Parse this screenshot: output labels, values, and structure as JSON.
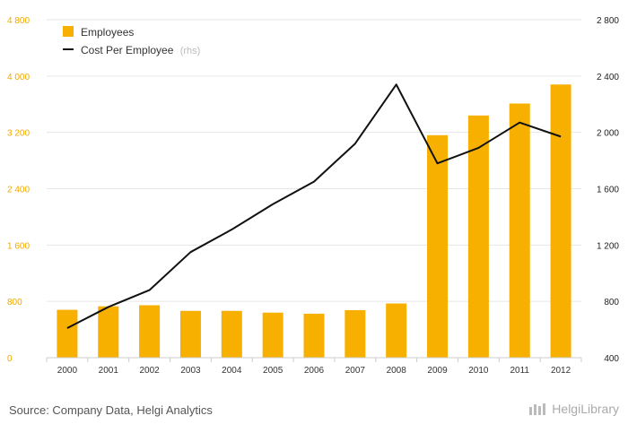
{
  "chart_data": {
    "type": "bar",
    "categories": [
      "2000",
      "2001",
      "2002",
      "2003",
      "2004",
      "2005",
      "2006",
      "2007",
      "2008",
      "2009",
      "2010",
      "2011",
      "2012"
    ],
    "series": [
      {
        "name": "Employees",
        "type": "bar",
        "axis": "left",
        "color": "#f7b000",
        "values": [
          680,
          730,
          745,
          665,
          665,
          640,
          625,
          675,
          770,
          3160,
          3440,
          3610,
          3880
        ]
      },
      {
        "name": "Cost Per Employee",
        "name_suffix": "(rhs)",
        "type": "line",
        "axis": "right",
        "color": "#111111",
        "values": [
          610,
          760,
          880,
          1150,
          1310,
          1490,
          1650,
          1920,
          2340,
          1780,
          1890,
          2070,
          1970
        ]
      }
    ],
    "y_left": {
      "ticks": [
        "0",
        "800",
        "1 600",
        "2 400",
        "3 200",
        "4 000",
        "4 800"
      ],
      "ylim": [
        0,
        4800
      ]
    },
    "y_right": {
      "ticks": [
        "400",
        "800",
        "1 200",
        "1 600",
        "2 000",
        "2 400",
        "2 800"
      ],
      "ylim": [
        400,
        2800
      ]
    },
    "grid": true,
    "legend_position": "top-left"
  },
  "footer": {
    "source": "Source: Company Data, Helgi Analytics",
    "brand": "HelgiLibrary"
  }
}
